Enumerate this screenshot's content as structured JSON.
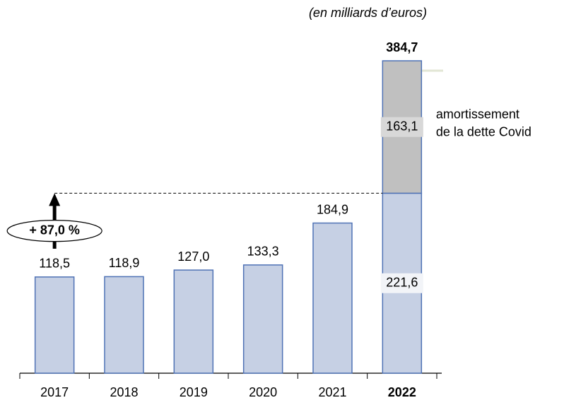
{
  "chart_data": {
    "type": "stacked_bar",
    "subtitle": "(en milliards d’euros)",
    "categories": [
      "2017",
      "2018",
      "2019",
      "2020",
      "2021",
      "2022"
    ],
    "highlight": "2022",
    "series": [
      {
        "color": "#c6d0e4",
        "edge": "#4f72b5",
        "values": [
          118.5,
          118.9,
          127.0,
          133.3,
          184.9,
          221.6
        ],
        "value_labels": [
          "118,5",
          "118,9",
          "127,0",
          "133,3",
          "184,9",
          "221,6"
        ]
      },
      {
        "name": [
          "amortissement",
          "de la dette Covid"
        ],
        "color": "#c0c0c0",
        "edge": "#4f72b5",
        "values": [
          null,
          null,
          null,
          null,
          null,
          163.1
        ],
        "value_labels": [
          null,
          null,
          null,
          null,
          null,
          "163,1"
        ]
      }
    ],
    "totals": [
      null,
      null,
      null,
      null,
      null,
      384.7
    ],
    "total_labels": [
      null,
      null,
      null,
      null,
      null,
      "384,7"
    ],
    "annotation": "+ 87,0 %"
  }
}
